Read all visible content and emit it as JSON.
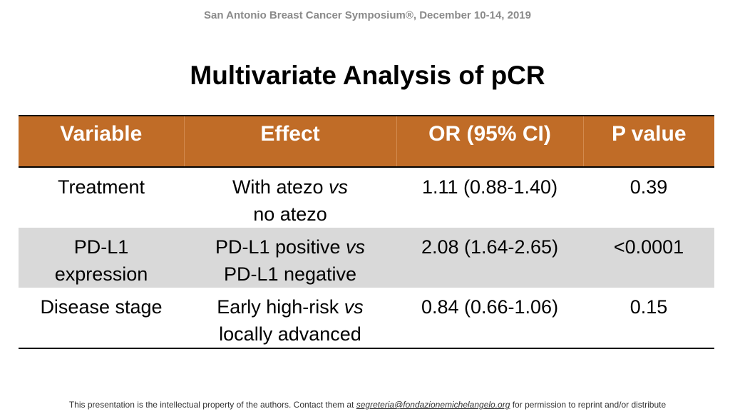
{
  "header": {
    "text": "San Antonio Breast Cancer Symposium®, December 10-14, 2019"
  },
  "title": "Multivariate Analysis of pCR",
  "table": {
    "columns": [
      "Variable",
      "Effect",
      "OR (95% CI)",
      "P value"
    ],
    "rows": [
      {
        "variable": [
          "Treatment"
        ],
        "effect_a": "With atezo",
        "vs": "vs",
        "effect_b": "no atezo",
        "or": "1.11 (0.88-1.40)",
        "p": "0.39"
      },
      {
        "variable": [
          "PD-L1",
          "expression"
        ],
        "effect_a": "PD-L1 positive",
        "vs": "vs",
        "effect_b": "PD-L1 negative",
        "or": "2.08 (1.64-2.65)",
        "p": "<0.0001"
      },
      {
        "variable": [
          "Disease stage"
        ],
        "effect_a": "Early high-risk",
        "vs": "vs",
        "effect_b": "locally advanced",
        "or": "0.84 (0.66-1.06)",
        "p": "0.15"
      }
    ]
  },
  "footer": {
    "before": "This presentation is the intellectual property of the authors. Contact them at ",
    "email": "segreteria@fondazionemichelangelo.org",
    "after": " for permission to reprint and/or distribute"
  }
}
